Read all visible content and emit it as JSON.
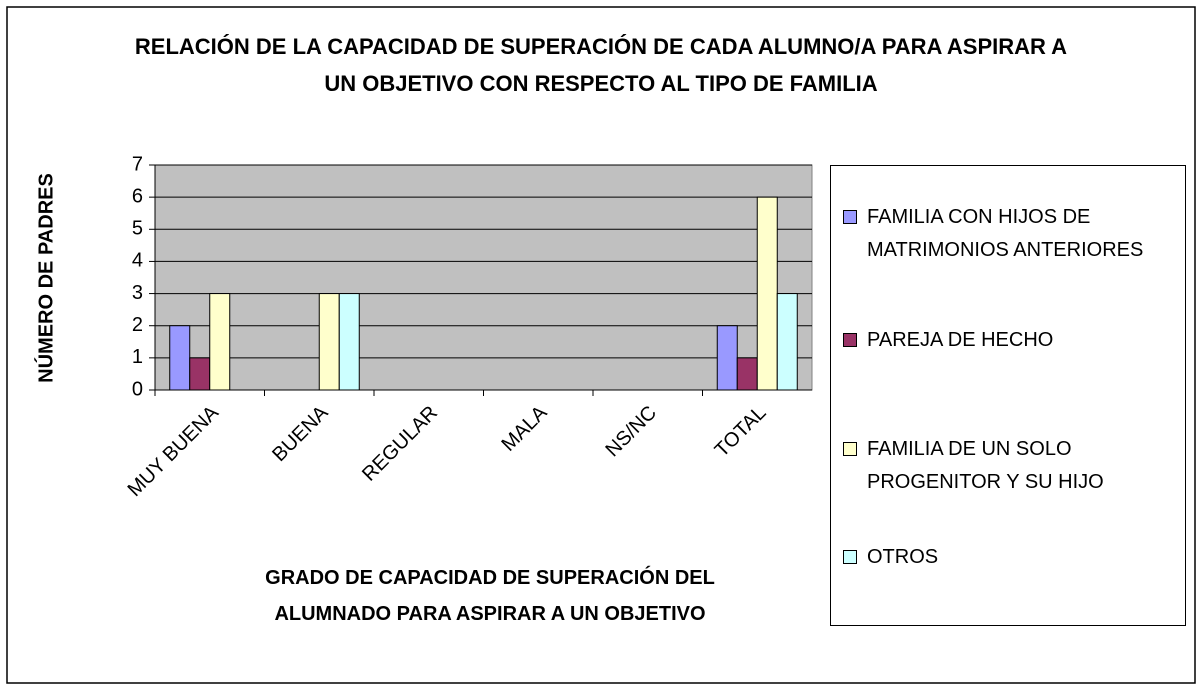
{
  "chart_data": {
    "type": "bar",
    "title": "RELACIÓN DE LA CAPACIDAD DE SUPERACIÓN DE CADA ALUMNO/A PARA ASPIRAR A UN OBJETIVO CON RESPECTO AL TIPO DE FAMILIA",
    "x_label": "GRADO DE CAPACIDAD DE SUPERACIÓN DEL ALUMNADO PARA ASPIRAR A UN OBJETIVO",
    "y_label": "NÚMERO DE PADRES",
    "categories": [
      "MUY BUENA",
      "BUENA",
      "REGULAR",
      "MALA",
      "NS/NC",
      "TOTAL"
    ],
    "series": [
      {
        "name": "FAMILIA CON HIJOS DE MATRIMONIOS ANTERIORES",
        "color": "#9999ff",
        "values": [
          2,
          0,
          0,
          0,
          0,
          2
        ]
      },
      {
        "name": "PAREJA DE HECHO",
        "color": "#993366",
        "values": [
          1,
          0,
          0,
          0,
          0,
          1
        ]
      },
      {
        "name": "FAMILIA DE UN SOLO PROGENITOR Y SU HIJO",
        "color": "#ffffcc",
        "values": [
          3,
          3,
          0,
          0,
          0,
          6
        ]
      },
      {
        "name": "OTROS",
        "color": "#ccffff",
        "values": [
          0,
          3,
          0,
          0,
          0,
          3
        ]
      }
    ],
    "ylim": [
      0,
      7
    ],
    "yticks": [
      0,
      1,
      2,
      3,
      4,
      5,
      6,
      7
    ],
    "grid": true,
    "legend": "right"
  }
}
